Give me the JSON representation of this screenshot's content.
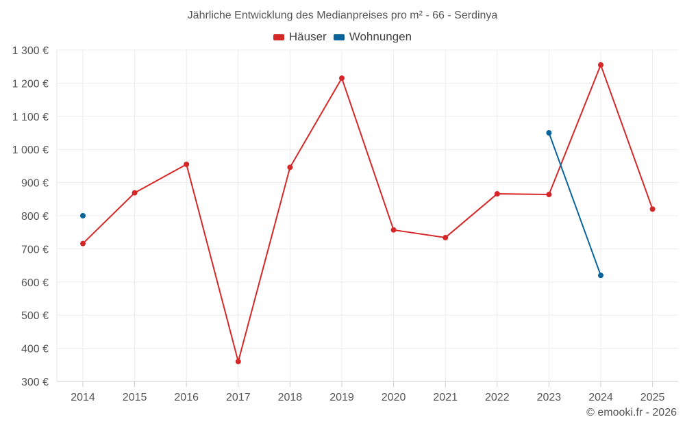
{
  "chart_data": {
    "type": "line",
    "title": "Jährliche Entwicklung des Medianpreises pro m² - 66 - Serdinya",
    "categories": [
      "2014",
      "2015",
      "2016",
      "2017",
      "2018",
      "2019",
      "2020",
      "2021",
      "2022",
      "2023",
      "2024",
      "2025"
    ],
    "y_tick_labels": [
      "300 €",
      "400 €",
      "500 €",
      "600 €",
      "700 €",
      "800 €",
      "900 €",
      "1 000 €",
      "1 100 €",
      "1 200 €",
      "1 300 €"
    ],
    "ylim": [
      300,
      1300
    ],
    "ytick_step": 100,
    "grid": true,
    "legend_position": "top-center",
    "series": [
      {
        "name": "Häuser",
        "color": "#d62728",
        "values": [
          716,
          869,
          955,
          360,
          946,
          1215,
          757,
          734,
          866,
          864,
          1255,
          820
        ]
      },
      {
        "name": "Wohnungen",
        "color": "#08649b",
        "values": [
          800,
          null,
          null,
          null,
          null,
          null,
          null,
          null,
          null,
          1050,
          620,
          null
        ]
      }
    ]
  },
  "footer": {
    "credit": "© emooki.fr - 2026"
  }
}
